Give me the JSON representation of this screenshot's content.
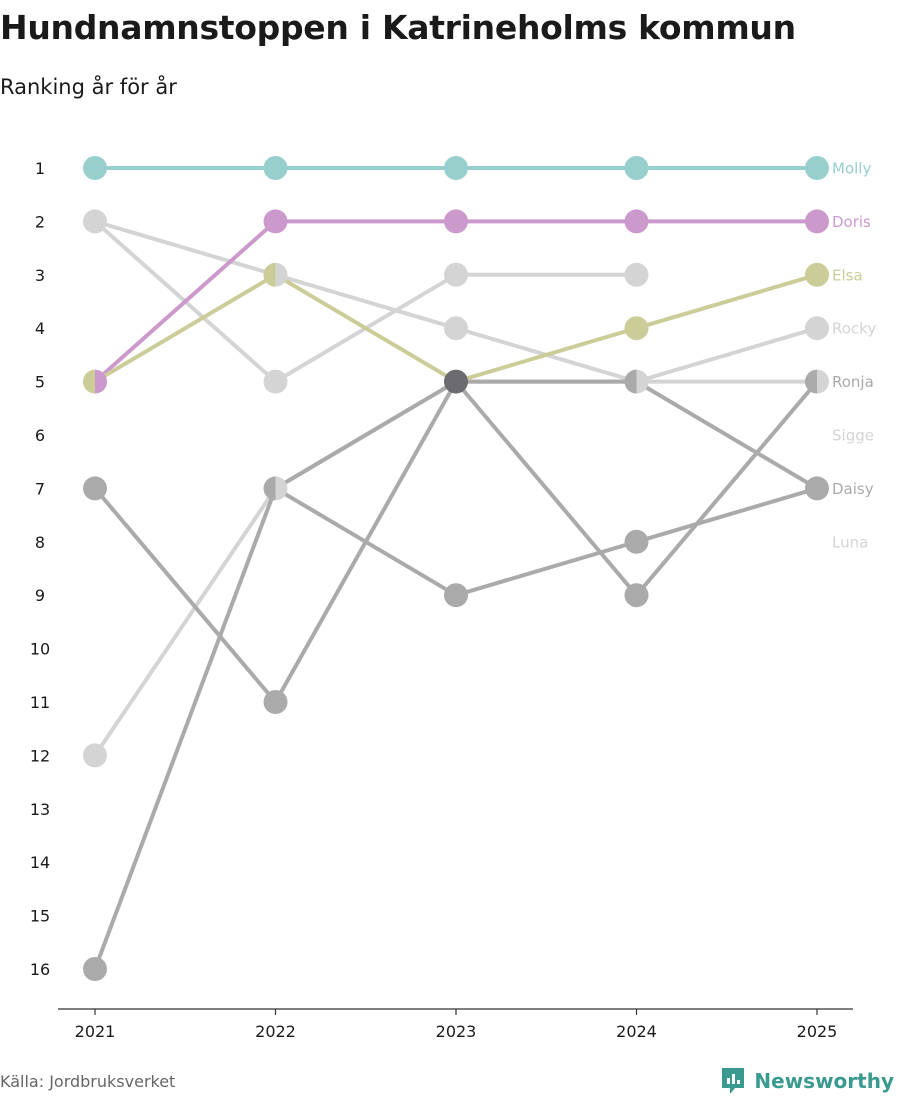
{
  "chart_data": {
    "type": "line",
    "title": "Hundnamnstoppen i Katrineholms kommun",
    "subtitle": "Ranking år för år",
    "x": [
      "2021",
      "2022",
      "2023",
      "2024",
      "2025"
    ],
    "y_ticks": [
      "1",
      "2",
      "3",
      "4",
      "5",
      "6",
      "7",
      "8",
      "9",
      "10",
      "11",
      "12",
      "13",
      "14",
      "15",
      "16"
    ],
    "ylim": [
      1,
      16
    ],
    "y_inverted": true,
    "series": [
      {
        "name": "Molly",
        "values": [
          1,
          1,
          1,
          1,
          1
        ],
        "color": "#96cfcc"
      },
      {
        "name": "Doris",
        "values": [
          5,
          2,
          2,
          2,
          2
        ],
        "color": "#cc99cc"
      },
      {
        "name": "Elsa",
        "values": [
          5,
          3,
          5,
          4,
          3
        ],
        "color": "#cccc99"
      },
      {
        "name": "Rocky",
        "values": [
          2,
          3,
          4,
          5,
          4
        ],
        "color": "#d4d4d4"
      },
      {
        "name": "Ronja",
        "values": [
          16,
          7,
          5,
          9,
          5
        ],
        "color": "#aaaaaa"
      },
      {
        "name": "Sigge",
        "values": [
          2,
          5,
          3,
          3,
          null
        ],
        "color": "#d4d4d4"
      },
      {
        "name": "Daisy",
        "values": [
          7,
          11,
          5,
          5,
          7
        ],
        "color": "#aaaaaa"
      },
      {
        "name": "Luna",
        "values": [
          12,
          7,
          5,
          5,
          null
        ],
        "color": "#d4d4d4"
      },
      {
        "name": "",
        "values": [
          null,
          7,
          9,
          8,
          7
        ],
        "color": "#aaaaaa"
      },
      {
        "name": "",
        "values": [
          null,
          null,
          5,
          5,
          5
        ],
        "color": "#d4d4d4"
      }
    ],
    "highlight_point": {
      "x": "2023",
      "y": 5,
      "color": "#6b6b70"
    }
  },
  "source": "Källa: Jordbruksverket",
  "brand": "Newsworthy",
  "brand_color": "#3a9a8f"
}
